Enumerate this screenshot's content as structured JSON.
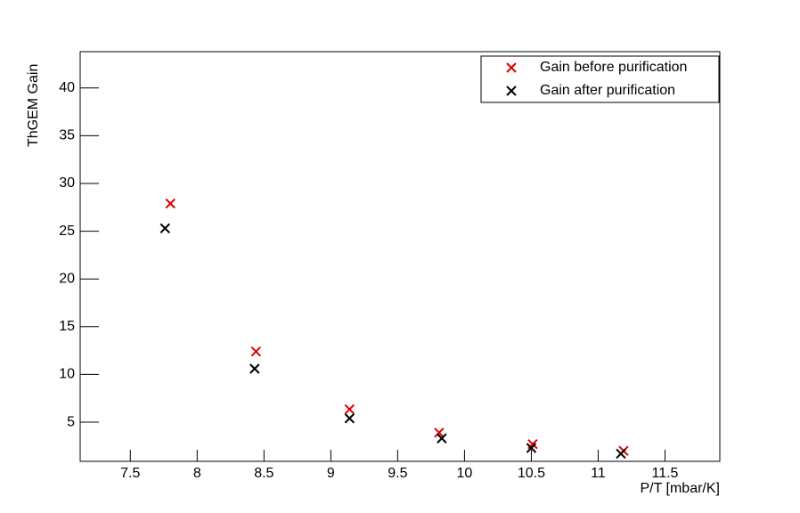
{
  "chart_data": {
    "type": "scatter",
    "x_label": "P/T [mbar/K]",
    "y_label": "ThGEM Gain",
    "xlim": [
      7.125,
      11.91
    ],
    "ylim": [
      0.9,
      43.8
    ],
    "xticks": [
      7.5,
      8,
      8.5,
      9,
      9.5,
      10,
      10.5,
      11,
      11.5
    ],
    "yticks": [
      5,
      10,
      15,
      20,
      25,
      30,
      35,
      40
    ],
    "legend": "top-right",
    "series": [
      {
        "name": "Gain before purification",
        "color": "#dd0000",
        "x": [
          7.8,
          8.44,
          9.14,
          9.81,
          10.51,
          11.19
        ],
        "values": [
          27.9,
          12.4,
          6.35,
          3.9,
          2.7,
          2.0
        ]
      },
      {
        "name": "Gain after purification",
        "color": "#000000",
        "x": [
          7.76,
          8.43,
          9.14,
          9.83,
          10.5,
          11.17
        ],
        "values": [
          25.3,
          10.6,
          5.4,
          3.3,
          2.3,
          1.7
        ]
      }
    ]
  }
}
